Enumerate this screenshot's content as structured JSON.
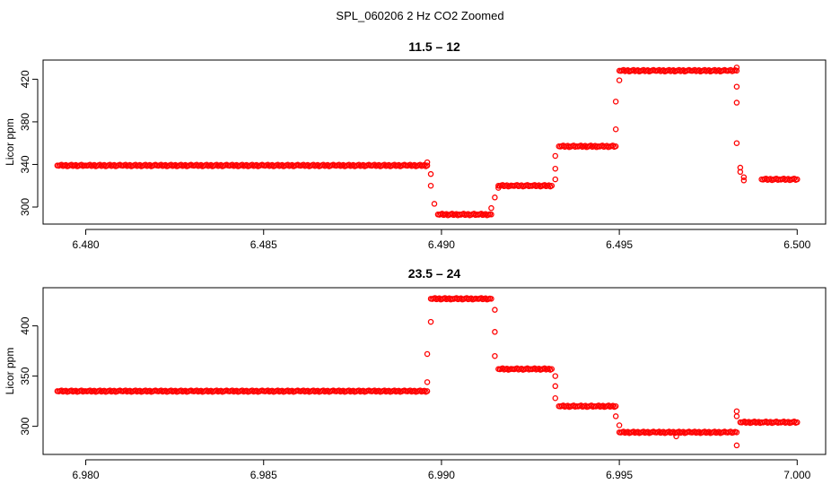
{
  "figure": {
    "suptitle": "SPL_060206  2 Hz CO2 Zoomed"
  },
  "colors": {
    "points": "#ff0000",
    "axes": "#000000",
    "background": "#ffffff"
  },
  "chart_data": [
    {
      "type": "scatter",
      "title": "11.5 – 12",
      "xlabel": "",
      "ylabel": "Licor ppm",
      "xlim": [
        6.4788,
        6.5008
      ],
      "ylim": [
        284,
        438
      ],
      "xticks": [
        6.48,
        6.485,
        6.49,
        6.495,
        6.5
      ],
      "xtick_labels": [
        "6.480",
        "6.485",
        "6.490",
        "6.495",
        "6.500"
      ],
      "yticks": [
        300,
        340,
        380,
        420
      ],
      "ytick_labels": [
        "300",
        "340",
        "380",
        "420"
      ],
      "series": [
        {
          "name": "CO2",
          "marker": "open-circle",
          "points": [
            [
              6.4792,
              339
            ],
            [
              6.48,
              339
            ],
            [
              6.481,
              339
            ],
            [
              6.482,
              339
            ],
            [
              6.483,
              339
            ],
            [
              6.484,
              339
            ],
            [
              6.485,
              339
            ],
            [
              6.486,
              339
            ],
            [
              6.487,
              339
            ],
            [
              6.488,
              339
            ],
            [
              6.489,
              339
            ],
            [
              6.4896,
              339
            ],
            [
              6.4896,
              342
            ],
            [
              6.4897,
              331
            ],
            [
              6.4897,
              320
            ],
            [
              6.4898,
              303
            ],
            [
              6.4899,
              293
            ],
            [
              6.4905,
              293
            ],
            [
              6.491,
              293
            ],
            [
              6.4914,
              293
            ],
            [
              6.4914,
              299
            ],
            [
              6.4915,
              309
            ],
            [
              6.4916,
              318
            ],
            [
              6.4916,
              320
            ],
            [
              6.492,
              320
            ],
            [
              6.4925,
              320
            ],
            [
              6.4931,
              320
            ],
            [
              6.4932,
              326
            ],
            [
              6.4932,
              336
            ],
            [
              6.4932,
              348
            ],
            [
              6.4933,
              357
            ],
            [
              6.4938,
              357
            ],
            [
              6.4944,
              357
            ],
            [
              6.4949,
              357
            ],
            [
              6.4949,
              373
            ],
            [
              6.4949,
              399
            ],
            [
              6.495,
              419
            ],
            [
              6.495,
              428
            ],
            [
              6.496,
              428
            ],
            [
              6.497,
              428
            ],
            [
              6.498,
              428
            ],
            [
              6.4983,
              428
            ],
            [
              6.4983,
              431
            ],
            [
              6.4983,
              413
            ],
            [
              6.4983,
              398
            ],
            [
              6.4983,
              360
            ],
            [
              6.4984,
              337
            ],
            [
              6.4984,
              333
            ],
            [
              6.4985,
              328
            ],
            [
              6.4985,
              325
            ],
            [
              6.499,
              326
            ],
            [
              6.4995,
              326
            ],
            [
              6.5,
              326
            ]
          ]
        }
      ]
    },
    {
      "type": "scatter",
      "title": "23.5 – 24",
      "xlabel": "",
      "ylabel": "Licor ppm",
      "xlim": [
        6.9788,
        7.0008
      ],
      "ylim": [
        272,
        438
      ],
      "xticks": [
        6.98,
        6.985,
        6.99,
        6.995,
        7.0
      ],
      "xtick_labels": [
        "6.980",
        "6.985",
        "6.990",
        "6.995",
        "7.000"
      ],
      "yticks": [
        300,
        350,
        400
      ],
      "ytick_labels": [
        "300",
        "350",
        "400"
      ],
      "series": [
        {
          "name": "CO2",
          "marker": "open-circle",
          "points": [
            [
              6.9792,
              335
            ],
            [
              6.98,
              335
            ],
            [
              6.981,
              335
            ],
            [
              6.982,
              335
            ],
            [
              6.983,
              335
            ],
            [
              6.984,
              335
            ],
            [
              6.985,
              335
            ],
            [
              6.986,
              335
            ],
            [
              6.987,
              335
            ],
            [
              6.988,
              335
            ],
            [
              6.989,
              335
            ],
            [
              6.9896,
              335
            ],
            [
              6.9896,
              344
            ],
            [
              6.9896,
              372
            ],
            [
              6.9897,
              404
            ],
            [
              6.9897,
              427
            ],
            [
              6.9903,
              427
            ],
            [
              6.991,
              427
            ],
            [
              6.9914,
              427
            ],
            [
              6.9915,
              416
            ],
            [
              6.9915,
              394
            ],
            [
              6.9915,
              370
            ],
            [
              6.9916,
              357
            ],
            [
              6.992,
              357
            ],
            [
              6.9925,
              357
            ],
            [
              6.9931,
              357
            ],
            [
              6.9932,
              350
            ],
            [
              6.9932,
              340
            ],
            [
              6.9932,
              328
            ],
            [
              6.9933,
              320
            ],
            [
              6.9938,
              320
            ],
            [
              6.9943,
              320
            ],
            [
              6.9949,
              320
            ],
            [
              6.9949,
              310
            ],
            [
              6.995,
              301
            ],
            [
              6.995,
              294
            ],
            [
              6.996,
              294
            ],
            [
              6.997,
              294
            ],
            [
              6.998,
              294
            ],
            [
              6.9983,
              294
            ],
            [
              6.9966,
              290
            ],
            [
              6.9983,
              315
            ],
            [
              6.9983,
              281
            ],
            [
              6.9983,
              310
            ],
            [
              6.9984,
              304
            ],
            [
              6.999,
              304
            ],
            [
              6.9995,
              304
            ],
            [
              7.0,
              304
            ]
          ]
        }
      ]
    }
  ]
}
